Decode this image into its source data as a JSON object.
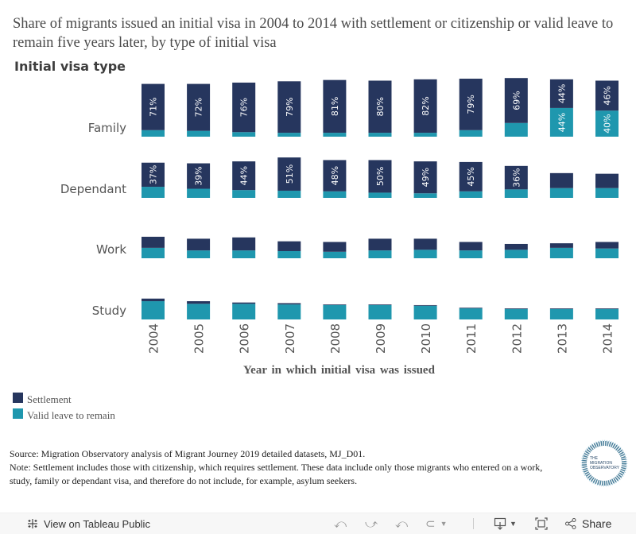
{
  "title": "Share of migrants issued an initial visa in 2004 to 2014 with settlement or citizenship or valid leave to remain five years later, by type of initial visa",
  "row_header": "Initial visa type",
  "colors": {
    "settlement": "#26365e",
    "valid_leave": "#1f97ae",
    "bar_label": "#ffffff"
  },
  "chart_data": {
    "type": "bar",
    "stacked": true,
    "title": "Share of migrants issued an initial visa in 2004 to 2014 with settlement or citizenship or valid leave to remain five years later, by type of initial visa",
    "xlabel": "Year in which initial visa was issued",
    "ylabel": "Initial visa type",
    "categories": [
      "2004",
      "2005",
      "2006",
      "2007",
      "2008",
      "2009",
      "2010",
      "2011",
      "2012",
      "2013",
      "2014"
    ],
    "panels": [
      {
        "name": "Family",
        "series": [
          {
            "name": "Settlement",
            "values": [
              71,
              72,
              76,
              79,
              81,
              80,
              82,
              79,
              69,
              44,
              46
            ],
            "labels": [
              "71%",
              "72%",
              "76%",
              "79%",
              "81%",
              "80%",
              "82%",
              "79%",
              "69%",
              "44%",
              "46%"
            ]
          },
          {
            "name": "Valid leave to remain",
            "values": [
              10,
              9,
              7,
              6,
              6,
              6,
              6,
              10,
              21,
              44,
              40
            ],
            "labels": [
              "",
              "",
              "",
              "",
              "",
              "",
              "",
              "",
              "",
              "44%",
              "40%"
            ]
          }
        ]
      },
      {
        "name": "Dependant",
        "series": [
          {
            "name": "Settlement",
            "values": [
              37,
              39,
              44,
              51,
              48,
              50,
              49,
              45,
              36,
              23,
              22
            ],
            "labels": [
              "37%",
              "39%",
              "44%",
              "51%",
              "48%",
              "50%",
              "49%",
              "45%",
              "36%",
              "",
              ""
            ]
          },
          {
            "name": "Valid leave to remain",
            "values": [
              17,
              14,
              12,
              11,
              10,
              8,
              7,
              10,
              13,
              15,
              15
            ],
            "labels": [
              "",
              "",
              "",
              "",
              "",
              "",
              "",
              "",
              "",
              "",
              ""
            ]
          }
        ]
      },
      {
        "name": "Work",
        "series": [
          {
            "name": "Settlement",
            "values": [
              17,
              18,
              20,
              15,
              15,
              18,
              17,
              13,
              9,
              7,
              10
            ],
            "labels": [
              "",
              "",
              "",
              "",
              "",
              "",
              "",
              "",
              "",
              "",
              ""
            ]
          },
          {
            "name": "Valid leave to remain",
            "values": [
              16,
              12,
              12,
              11,
              10,
              12,
              13,
              12,
              13,
              16,
              15
            ],
            "labels": [
              "",
              "",
              "",
              "",
              "",
              "",
              "",
              "",
              "",
              "",
              ""
            ]
          }
        ]
      },
      {
        "name": "Study",
        "series": [
          {
            "name": "Settlement",
            "values": [
              4,
              4,
              2,
              2,
              1,
              1,
              1,
              1,
              1,
              1,
              1
            ],
            "labels": [
              "",
              "",
              "",
              "",
              "",
              "",
              "",
              "",
              "",
              "",
              ""
            ]
          },
          {
            "name": "Valid leave to remain",
            "values": [
              28,
              24,
              24,
              23,
              22,
              22,
              21,
              17,
              16,
              16,
              16
            ],
            "labels": [
              "",
              "",
              "",
              "",
              "",
              "",
              "",
              "",
              "",
              "",
              ""
            ]
          }
        ]
      }
    ],
    "ylim": [
      0,
      100
    ],
    "grid": false,
    "legend_position": "bottom-left"
  },
  "legend": [
    {
      "label": "Settlement",
      "color": "#26365e"
    },
    {
      "label": "Valid leave to remain",
      "color": "#1f97ae"
    }
  ],
  "footnote": {
    "source": "Source: Migration Observatory analysis of Migrant Journey 2019 detailed datasets, MJ_D01.",
    "note": "Note: Settlement includes those with citizenship, which requires settlement. These data include only those migrants who entered on a work, study, family or dependant visa, and therefore do not include, for example, asylum seekers."
  },
  "logo": {
    "line1": "THE",
    "line2": "MIGRATION",
    "line3": "OBSERVATORY"
  },
  "toolbar": {
    "view_on_tableau": "View on Tableau Public",
    "share": "Share",
    "icons": [
      "tableau-icon",
      "undo-icon",
      "redo-icon",
      "revert-icon",
      "refresh-icon",
      "download-icon",
      "fullscreen-icon",
      "share-icon"
    ]
  }
}
